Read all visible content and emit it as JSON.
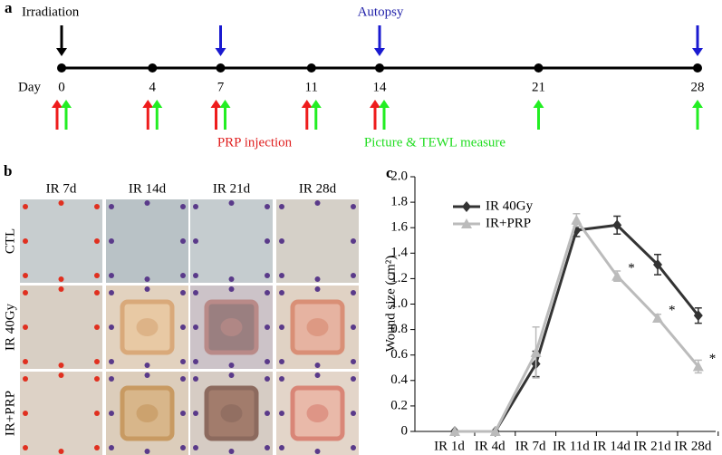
{
  "panel_a": {
    "label": "a",
    "irradiation": "Irradiation",
    "autopsy": "Autopsy",
    "day_label": "Day",
    "days": [
      0,
      4,
      7,
      11,
      14,
      21,
      28
    ],
    "irradiation_days": [
      0
    ],
    "autopsy_days": [
      7,
      14,
      28
    ],
    "prp_days": [
      0,
      4,
      7,
      11,
      14
    ],
    "picture_days": [
      0,
      4,
      7,
      11,
      14,
      21,
      28
    ],
    "prp_label": "PRP injection",
    "picture_label": "Picture & TEWL measure"
  },
  "panel_b": {
    "label": "b",
    "columns": [
      "IR 7d",
      "IR 14d",
      "IR 21d",
      "IR 28d"
    ],
    "rows": [
      "CTL",
      "IR 40Gy",
      "IR+PRP"
    ]
  },
  "chart_data": {
    "type": "line",
    "label": "c",
    "y_label": "Wound size (cm²)",
    "categories": [
      "IR 1d",
      "IR 4d",
      "IR 7d",
      "IR 11d",
      "IR 14d",
      "IR 21d",
      "IR 28d"
    ],
    "series": [
      {
        "name": "IR 40Gy",
        "color": "#333333",
        "marker": "diamond",
        "values": [
          0,
          0,
          0.53,
          1.58,
          1.62,
          1.31,
          0.91
        ],
        "errors": [
          0,
          0,
          0.1,
          0.05,
          0.07,
          0.08,
          0.06
        ]
      },
      {
        "name": "IR+PRP",
        "color": "#bbbbbb",
        "marker": "triangle",
        "values": [
          0,
          0,
          0.62,
          1.66,
          1.22,
          0.89,
          0.51
        ],
        "errors": [
          0,
          0,
          0.2,
          0.05,
          0.04,
          0.03,
          0.05
        ]
      }
    ],
    "annotations": [
      {
        "text": "*",
        "x": "IR 14d"
      },
      {
        "text": "*",
        "x": "IR 21d"
      },
      {
        "text": "*",
        "x": "IR 28d"
      }
    ],
    "ylim": [
      0,
      2
    ],
    "yticks": [
      0,
      0.2,
      0.4,
      0.6,
      0.8,
      {
        "value": 1,
        "label": "1.0"
      },
      1.2,
      1.4,
      1.6,
      1.8,
      {
        "value": 2,
        "label": "2.0"
      }
    ],
    "legend": "upper left"
  }
}
